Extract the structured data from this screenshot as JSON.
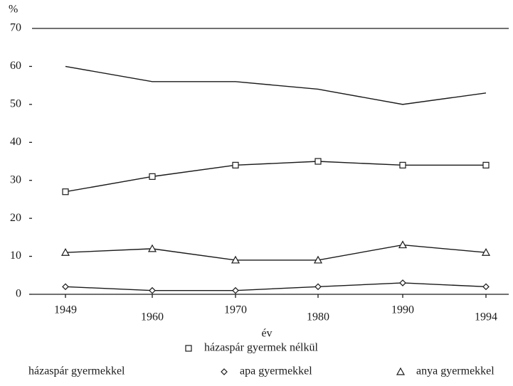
{
  "chart_data": {
    "type": "line",
    "y_label": "%",
    "x_label": "év",
    "categories": [
      "1949",
      "1960",
      "1970",
      "1980",
      "1990",
      "1994"
    ],
    "series": [
      {
        "name": "házaspár gyermek nélkül",
        "color": "#1a1a1a",
        "marker": "square",
        "values": [
          27,
          31,
          34,
          35,
          34,
          34
        ]
      },
      {
        "name": "házaspár gyermekkel",
        "color": "#1a1a1a",
        "marker": "none",
        "values": [
          60,
          56,
          56,
          54,
          50,
          53
        ]
      },
      {
        "name": "apa gyermekkel",
        "color": "#1a1a1a",
        "marker": "diamond",
        "values": [
          2,
          1,
          1,
          2,
          3,
          2
        ]
      },
      {
        "name": "anya gyermekkel",
        "color": "#1a1a1a",
        "marker": "triangle",
        "values": [
          11,
          12,
          9,
          9,
          13,
          11
        ]
      }
    ],
    "ylim": [
      0,
      70
    ],
    "yticks": [
      0,
      10,
      20,
      30,
      40,
      50,
      60,
      70
    ]
  }
}
